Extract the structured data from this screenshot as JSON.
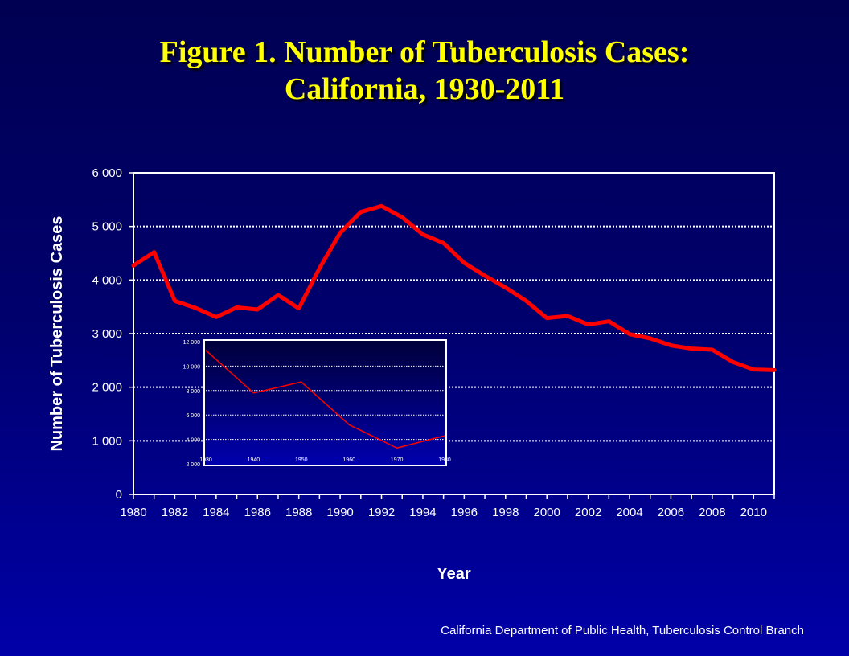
{
  "title_line1": "Figure 1. Number of Tuberculosis Cases:",
  "title_line2": "California, 1930-2011",
  "source": "California Department of Public Health, Tuberculosis Control Branch",
  "colors": {
    "title": "#ffff00",
    "line": "#ff0000",
    "text": "#ffffff",
    "grid": "#ffffff"
  },
  "chart_data": [
    {
      "type": "line",
      "xlabel": "Year",
      "ylabel": "Number of Tuberculosis Cases",
      "xlim": [
        1980,
        2011
      ],
      "ylim": [
        0,
        6000
      ],
      "yticks": [
        0,
        1000,
        2000,
        3000,
        4000,
        5000,
        6000
      ],
      "ytick_labels": [
        "0",
        "1 000",
        "2 000",
        "3 000",
        "4 000",
        "5 000",
        "6 000"
      ],
      "xticks": [
        1980,
        1982,
        1984,
        1986,
        1988,
        1990,
        1992,
        1994,
        1996,
        1998,
        2000,
        2002,
        2004,
        2006,
        2008,
        2010
      ],
      "xtick_labels": [
        "1980",
        "1982",
        "1984",
        "1986",
        "1988",
        "1990",
        "1992",
        "1994",
        "1996",
        "1998",
        "2000",
        "2002",
        "2004",
        "2006",
        "2008",
        "2010"
      ],
      "grid": true,
      "x": [
        1980,
        1981,
        1982,
        1983,
        1984,
        1985,
        1986,
        1987,
        1988,
        1989,
        1990,
        1991,
        1992,
        1993,
        1994,
        1995,
        1996,
        1997,
        1998,
        1999,
        2000,
        2001,
        2002,
        2003,
        2004,
        2005,
        2006,
        2007,
        2008,
        2009,
        2010,
        2011
      ],
      "series": [
        {
          "values": [
            4270,
            4520,
            3610,
            3480,
            3310,
            3490,
            3450,
            3720,
            3470,
            4220,
            4880,
            5270,
            5380,
            5170,
            4850,
            4690,
            4320,
            4080,
            3860,
            3610,
            3290,
            3330,
            3170,
            3230,
            2990,
            2910,
            2780,
            2720,
            2700,
            2470,
            2330,
            2320
          ]
        }
      ]
    },
    {
      "type": "line",
      "inset": true,
      "xlim": [
        1930,
        1980
      ],
      "ylim": [
        2000,
        12000
      ],
      "yticks": [
        2000,
        4000,
        6000,
        8000,
        10000,
        12000
      ],
      "ytick_labels": [
        "2 000",
        "4 000",
        "6 000",
        "8 000",
        "10 000",
        "12 000"
      ],
      "xticks": [
        1930,
        1940,
        1950,
        1960,
        1970,
        1980
      ],
      "xtick_labels": [
        "1930",
        "1940",
        "1950",
        "1960",
        "1970",
        "1980"
      ],
      "grid": true,
      "x": [
        1930,
        1940,
        1950,
        1960,
        1970,
        1980
      ],
      "series": [
        {
          "values": [
            11300,
            7800,
            8700,
            5200,
            3300,
            4300
          ]
        }
      ]
    }
  ]
}
